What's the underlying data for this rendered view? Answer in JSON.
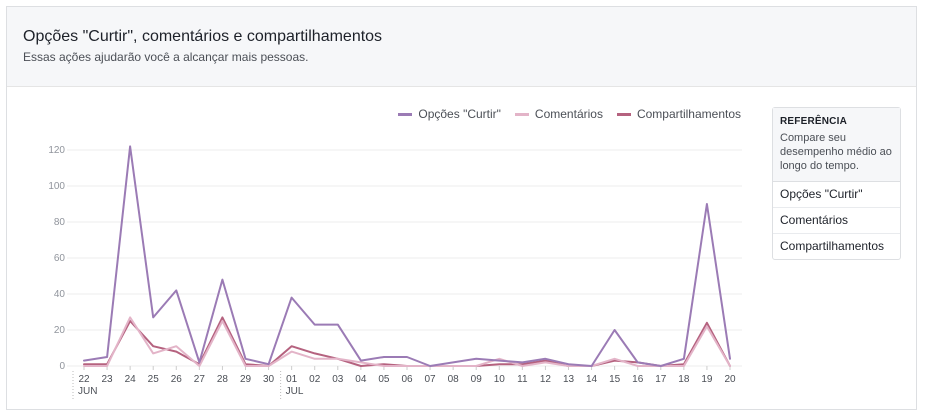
{
  "header": {
    "title": "Opções \"Curtir\", comentários e compartilhamentos",
    "subtitle": "Essas ações ajudarão você a alcançar mais pessoas."
  },
  "reference": {
    "title": "REFERÊNCIA",
    "description": "Compare seu desempenho médio ao longo do tempo.",
    "items": [
      "Opções \"Curtir\"",
      "Comentários",
      "Compartilhamentos"
    ]
  },
  "colors": {
    "likes": "#9b7bb5",
    "comments": "#e3b4c8",
    "shares": "#b5627f",
    "grid": "#eeeeee"
  },
  "chart_data": {
    "type": "line",
    "categories": [
      "22",
      "23",
      "24",
      "25",
      "26",
      "27",
      "28",
      "29",
      "30",
      "01",
      "02",
      "03",
      "04",
      "05",
      "06",
      "07",
      "08",
      "09",
      "10",
      "11",
      "12",
      "13",
      "14",
      "15",
      "16",
      "17",
      "18",
      "19",
      "20"
    ],
    "month_labels": [
      {
        "label": "JUN",
        "index": 0
      },
      {
        "label": "JUL",
        "index": 9
      }
    ],
    "yticks": [
      0,
      20,
      40,
      60,
      80,
      100,
      120
    ],
    "ylim": [
      0,
      125
    ],
    "series": [
      {
        "name": "Opções \"Curtir\"",
        "color_key": "likes",
        "values": [
          3,
          5,
          122,
          27,
          42,
          2,
          48,
          4,
          1,
          38,
          23,
          23,
          3,
          5,
          5,
          0,
          2,
          4,
          3,
          2,
          4,
          1,
          0,
          20,
          2,
          0,
          4,
          90,
          4
        ]
      },
      {
        "name": "Comentários",
        "color_key": "comments",
        "values": [
          0,
          0,
          27,
          7,
          11,
          0,
          25,
          0,
          0,
          8,
          4,
          4,
          2,
          0,
          0,
          0,
          0,
          0,
          4,
          0,
          2,
          0,
          0,
          4,
          0,
          0,
          0,
          22,
          0
        ]
      },
      {
        "name": "Compartilhamentos",
        "color_key": "shares",
        "values": [
          1,
          1,
          25,
          11,
          8,
          1,
          27,
          1,
          0,
          11,
          7,
          4,
          0,
          1,
          0,
          0,
          0,
          0,
          1,
          1,
          3,
          0,
          0,
          3,
          2,
          0,
          1,
          24,
          0
        ]
      }
    ]
  }
}
